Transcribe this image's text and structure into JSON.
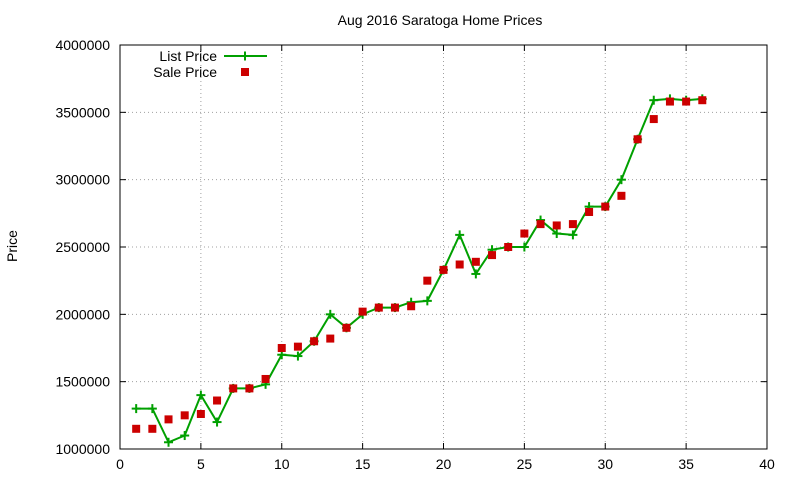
{
  "chart_data": {
    "type": "line",
    "title": "Aug 2016 Saratoga Home Prices",
    "xlabel": "",
    "ylabel": "Price",
    "xlim": [
      0,
      40
    ],
    "ylim": [
      1000000,
      4000000
    ],
    "x_ticks": [
      "0",
      "5",
      "10",
      "15",
      "20",
      "25",
      "30",
      "35",
      "40"
    ],
    "y_ticks": [
      "1000000",
      "1500000",
      "2000000",
      "2500000",
      "3000000",
      "3500000",
      "4000000"
    ],
    "grid": true,
    "legend_position": "top-left",
    "x": [
      1,
      2,
      3,
      4,
      5,
      6,
      7,
      8,
      9,
      10,
      11,
      12,
      13,
      14,
      15,
      16,
      17,
      18,
      19,
      20,
      21,
      22,
      23,
      24,
      25,
      26,
      27,
      28,
      29,
      30,
      31,
      32,
      33,
      34,
      35,
      36
    ],
    "series": [
      {
        "name": "List Price",
        "style": "line-plus",
        "color": "#00a000",
        "values": [
          1300000,
          1300000,
          1050000,
          1100000,
          1400000,
          1200000,
          1450000,
          1450000,
          1480000,
          1700000,
          1690000,
          1800000,
          2000000,
          1900000,
          2000000,
          2050000,
          2050000,
          2090000,
          2100000,
          2330000,
          2590000,
          2300000,
          2480000,
          2500000,
          2500000,
          2700000,
          2600000,
          2590000,
          2800000,
          2800000,
          3000000,
          3300000,
          3590000,
          3600000,
          3590000,
          3600000
        ]
      },
      {
        "name": "Sale Price",
        "style": "square-marker",
        "color": "#cc0000",
        "values": [
          1150000,
          1150000,
          1220000,
          1250000,
          1260000,
          1360000,
          1450000,
          1450000,
          1520000,
          1750000,
          1760000,
          1800000,
          1820000,
          1900000,
          2020000,
          2050000,
          2050000,
          2060000,
          2250000,
          2330000,
          2370000,
          2390000,
          2440000,
          2500000,
          2600000,
          2670000,
          2660000,
          2670000,
          2760000,
          2800000,
          2880000,
          3300000,
          3450000,
          3580000,
          3580000,
          3590000
        ]
      }
    ]
  }
}
